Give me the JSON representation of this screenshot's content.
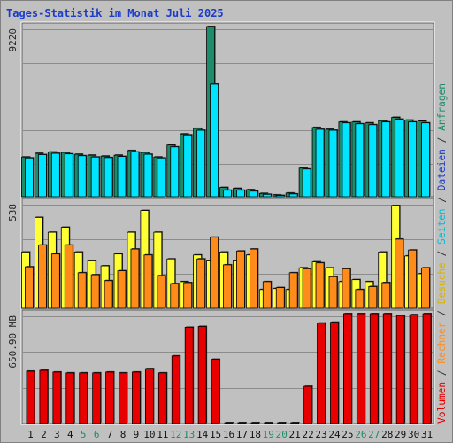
{
  "page": {
    "title": "Tages-Statistik im Monat Juli 2025"
  },
  "chart_data": {
    "type": "bar",
    "x_labels": [
      "1",
      "2",
      "3",
      "4",
      "5",
      "6",
      "7",
      "8",
      "9",
      "10",
      "11",
      "12",
      "13",
      "14",
      "15",
      "16",
      "17",
      "18",
      "19",
      "20",
      "21",
      "22",
      "23",
      "24",
      "25",
      "26",
      "27",
      "28",
      "29",
      "30",
      "31"
    ],
    "weekend_days": [
      "5",
      "6",
      "12",
      "13",
      "19",
      "20",
      "26",
      "27"
    ],
    "panels": [
      {
        "id": "top",
        "y_tick_label": "9220",
        "ymax": 9220,
        "right_axis_label": [
          "Dateien",
          "/",
          "Anfragen"
        ],
        "series": [
          {
            "name": "Anfragen",
            "color": "#1d8c6b",
            "values": [
              2150,
              2350,
              2420,
              2400,
              2300,
              2250,
              2200,
              2250,
              2500,
              2400,
              2150,
              2800,
              3400,
              3700,
              9220,
              500,
              450,
              380,
              180,
              100,
              200,
              1550,
              3750,
              3650,
              4050,
              4050,
              4000,
              4120,
              4300,
              4150,
              4100
            ]
          },
          {
            "name": "Dateien",
            "color": "#00e5ff",
            "values": [
              2100,
              2280,
              2350,
              2320,
              2220,
              2150,
              2120,
              2180,
              2420,
              2300,
              2100,
              2700,
              3350,
              3600,
              6100,
              350,
              350,
              300,
              130,
              70,
              150,
              1500,
              3650,
              3600,
              4000,
              3950,
              3900,
              4050,
              4200,
              4050,
              4000
            ]
          }
        ]
      },
      {
        "id": "middle",
        "y_tick_label": "538",
        "ymax": 538,
        "right_axis_label": [
          "Besuche",
          "/",
          "Seiten"
        ],
        "series": [
          {
            "name": "Besuche",
            "color": "#ffff33",
            "values": [
              285,
              460,
              385,
              410,
              285,
              240,
              215,
              275,
              385,
              495,
              385,
              250,
              135,
              270,
              240,
              285,
              240,
              270,
              95,
              100,
              95,
              205,
              235,
              205,
              135,
              145,
              135,
              285,
              520,
              265,
              175
            ]
          },
          {
            "name": "Seiten",
            "color": "#ff8c1a",
            "values": [
              210,
              320,
              275,
              320,
              180,
              170,
              140,
              190,
              300,
              270,
              165,
              125,
              130,
              250,
              360,
              220,
              290,
              300,
              135,
              105,
              180,
              200,
              230,
              160,
              200,
              95,
              110,
              130,
              350,
              295,
              205
            ]
          }
        ]
      },
      {
        "id": "bottom",
        "y_tick_label": "650.90 MB",
        "ymax": 650.9,
        "right_axis_label": [
          "Volumen",
          "/",
          "Rechner"
        ],
        "series": [
          {
            "name": "Volumen",
            "color": "#e80000",
            "values": [
              310,
              315,
              305,
              300,
              300,
              300,
              305,
              300,
              305,
              325,
              300,
              400,
              570,
              575,
              380,
              3,
              3,
              3,
              3,
              3,
              3,
              220,
              595,
              600,
              650.9,
              650.9,
              650.9,
              650.9,
              640,
              645,
              650.9
            ]
          }
        ]
      }
    ]
  }
}
